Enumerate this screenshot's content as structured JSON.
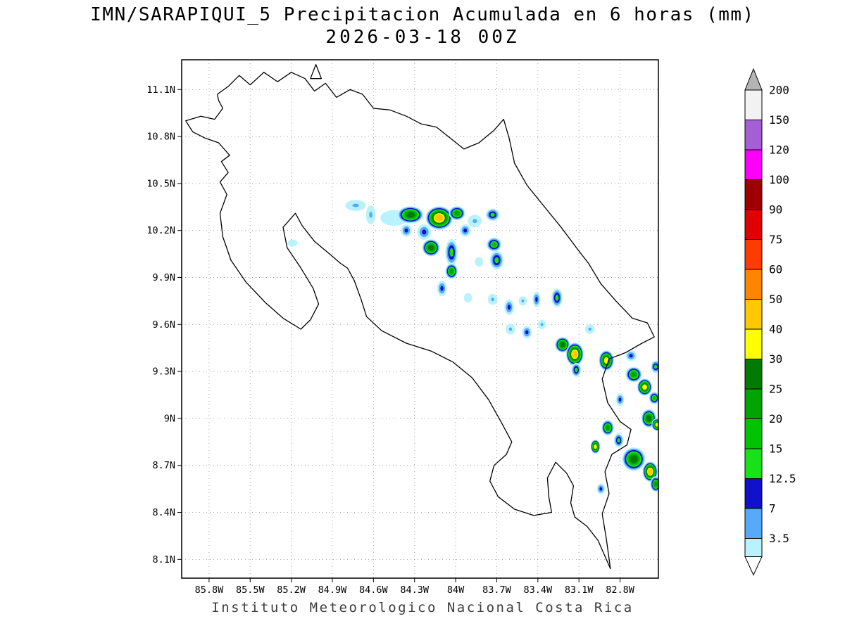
{
  "title": {
    "line1": "IMN/SARAPIQUI_5 Precipitacion Acumulada en 6 horas (mm)",
    "line2": "2026-03-18 00Z"
  },
  "footer": {
    "caption": "Instituto Meteorologico Nacional Costa Rica"
  },
  "chart_data": {
    "type": "heatmap",
    "title": "IMN/SARAPIQUI_5 Precipitacion Acumulada en 6 horas (mm)",
    "subtitle": "2026-03-18 00Z",
    "units": "mm",
    "region": "Costa Rica",
    "grid": true,
    "extent": {
      "lon_min": -86.0,
      "lon_max": -82.52,
      "lat_min": 7.98,
      "lat_max": 11.29
    },
    "lon_ticks": [
      {
        "v": -85.8,
        "label": "85.8W"
      },
      {
        "v": -85.5,
        "label": "85.5W"
      },
      {
        "v": -85.2,
        "label": "85.2W"
      },
      {
        "v": -84.9,
        "label": "84.9W"
      },
      {
        "v": -84.6,
        "label": "84.6W"
      },
      {
        "v": -84.3,
        "label": "84.3W"
      },
      {
        "v": -84.0,
        "label": "84W"
      },
      {
        "v": -83.7,
        "label": "83.7W"
      },
      {
        "v": -83.4,
        "label": "83.4W"
      },
      {
        "v": -83.1,
        "label": "83.1W"
      },
      {
        "v": -82.8,
        "label": "82.8W"
      }
    ],
    "lat_ticks": [
      {
        "v": 11.1,
        "label": "11.1N"
      },
      {
        "v": 10.8,
        "label": "10.8N"
      },
      {
        "v": 10.5,
        "label": "10.5N"
      },
      {
        "v": 10.2,
        "label": "10.2N"
      },
      {
        "v": 9.9,
        "label": "9.9N"
      },
      {
        "v": 9.6,
        "label": "9.6N"
      },
      {
        "v": 9.3,
        "label": "9.3N"
      },
      {
        "v": 9.0,
        "label": "9N"
      },
      {
        "v": 8.7,
        "label": "8.7N"
      },
      {
        "v": 8.4,
        "label": "8.4N"
      },
      {
        "v": 8.1,
        "label": "8.1N"
      }
    ],
    "colorbar": {
      "boundary_labels_top_to_bottom": [
        "200",
        "150",
        "120",
        "100",
        "90",
        "75",
        "60",
        "50",
        "40",
        "30",
        "25",
        "20",
        "15",
        "12.5",
        "7",
        "3.5"
      ],
      "segment_colors_top_to_bottom": [
        "#f2f2f2",
        "#a55fd5",
        "#fa00fa",
        "#9c0000",
        "#e00000",
        "#ff3c00",
        "#ff8400",
        "#ffc800",
        "#ffff00",
        "#007a00",
        "#00a300",
        "#00c300",
        "#17e117",
        "#1010cd",
        "#55aafa",
        "#b8f2fc"
      ],
      "levels_mm_ascending": [
        3.5,
        7,
        12.5,
        15,
        20,
        25,
        30,
        40,
        50,
        60,
        75,
        90,
        100,
        120,
        150,
        200
      ],
      "top_arrow_color": "#b4b4b4",
      "bottom_arrow_color": "#ffffff"
    },
    "coastline": [
      [
        -85.74,
        11.07
      ],
      [
        -85.66,
        11.12
      ],
      [
        -85.58,
        11.19
      ],
      [
        -85.5,
        11.13
      ],
      [
        -85.4,
        11.21
      ],
      [
        -85.3,
        11.15
      ],
      [
        -85.2,
        11.21
      ],
      [
        -85.1,
        11.17
      ],
      [
        -85.03,
        11.09
      ],
      [
        -84.95,
        11.14
      ],
      [
        -84.87,
        11.05
      ],
      [
        -84.77,
        11.1
      ],
      [
        -84.68,
        11.07
      ],
      [
        -84.6,
        10.98
      ],
      [
        -84.48,
        10.97
      ],
      [
        -84.36,
        10.93
      ],
      [
        -84.25,
        10.88
      ],
      [
        -84.14,
        10.86
      ],
      [
        -84.04,
        10.79
      ],
      [
        -83.94,
        10.72
      ],
      [
        -83.83,
        10.76
      ],
      [
        -83.72,
        10.84
      ],
      [
        -83.65,
        10.91
      ],
      [
        -83.61,
        10.79
      ],
      [
        -83.57,
        10.63
      ],
      [
        -83.48,
        10.49
      ],
      [
        -83.36,
        10.36
      ],
      [
        -83.23,
        10.22
      ],
      [
        -83.11,
        10.08
      ],
      [
        -83.03,
        9.99
      ],
      [
        -82.94,
        9.86
      ],
      [
        -82.83,
        9.75
      ],
      [
        -82.71,
        9.64
      ],
      [
        -82.6,
        9.61
      ],
      [
        -82.55,
        9.52
      ],
      [
        -82.64,
        9.48
      ],
      [
        -82.76,
        9.42
      ],
      [
        -82.88,
        9.38
      ],
      [
        -82.93,
        9.25
      ],
      [
        -82.89,
        9.1
      ],
      [
        -82.8,
        8.98
      ],
      [
        -82.72,
        8.93
      ],
      [
        -82.75,
        8.83
      ],
      [
        -82.86,
        8.77
      ],
      [
        -82.91,
        8.66
      ],
      [
        -82.88,
        8.52
      ],
      [
        -82.93,
        8.39
      ],
      [
        -82.9,
        8.23
      ],
      [
        -82.87,
        8.04
      ],
      [
        -82.96,
        8.22
      ],
      [
        -83.04,
        8.31
      ],
      [
        -83.13,
        8.37
      ],
      [
        -83.16,
        8.46
      ],
      [
        -83.14,
        8.57
      ],
      [
        -83.19,
        8.65
      ],
      [
        -83.27,
        8.72
      ],
      [
        -83.33,
        8.62
      ],
      [
        -83.32,
        8.5
      ],
      [
        -83.3,
        8.4
      ],
      [
        -83.43,
        8.38
      ],
      [
        -83.57,
        8.42
      ],
      [
        -83.69,
        8.5
      ],
      [
        -83.75,
        8.6
      ],
      [
        -83.72,
        8.7
      ],
      [
        -83.63,
        8.77
      ],
      [
        -83.59,
        8.85
      ],
      [
        -83.67,
        8.98
      ],
      [
        -83.76,
        9.12
      ],
      [
        -83.88,
        9.26
      ],
      [
        -84.02,
        9.36
      ],
      [
        -84.18,
        9.43
      ],
      [
        -84.36,
        9.48
      ],
      [
        -84.54,
        9.56
      ],
      [
        -84.65,
        9.65
      ],
      [
        -84.69,
        9.76
      ],
      [
        -84.74,
        9.88
      ],
      [
        -84.79,
        9.96
      ],
      [
        -84.84,
        9.99
      ],
      [
        -84.92,
        10.05
      ],
      [
        -85.03,
        10.13
      ],
      [
        -85.12,
        10.23
      ],
      [
        -85.17,
        10.31
      ],
      [
        -85.26,
        10.22
      ],
      [
        -85.23,
        10.09
      ],
      [
        -85.13,
        9.96
      ],
      [
        -85.04,
        9.83
      ],
      [
        -85.0,
        9.73
      ],
      [
        -85.06,
        9.63
      ],
      [
        -85.13,
        9.57
      ],
      [
        -85.26,
        9.64
      ],
      [
        -85.39,
        9.74
      ],
      [
        -85.53,
        9.87
      ],
      [
        -85.64,
        10.01
      ],
      [
        -85.7,
        10.16
      ],
      [
        -85.72,
        10.31
      ],
      [
        -85.67,
        10.43
      ],
      [
        -85.72,
        10.51
      ],
      [
        -85.66,
        10.57
      ],
      [
        -85.71,
        10.64
      ],
      [
        -85.65,
        10.68
      ],
      [
        -85.73,
        10.76
      ],
      [
        -85.83,
        10.79
      ],
      [
        -85.92,
        10.83
      ],
      [
        -85.97,
        10.9
      ],
      [
        -85.86,
        10.93
      ],
      [
        -85.76,
        10.91
      ],
      [
        -85.7,
        10.98
      ],
      [
        -85.73,
        11.03
      ],
      [
        -85.74,
        11.07
      ]
    ],
    "lake_island": [
      [
        -85.06,
        11.17
      ],
      [
        -84.98,
        11.17
      ],
      [
        -85.02,
        11.26
      ],
      [
        -85.06,
        11.17
      ]
    ],
    "cells": [
      {
        "lon": -84.73,
        "lat": 10.36,
        "rx": 0.075,
        "ry": 0.035,
        "mm": 7
      },
      {
        "lon": -84.62,
        "lat": 10.3,
        "rx": 0.035,
        "ry": 0.06,
        "mm": 7
      },
      {
        "lon": -84.45,
        "lat": 10.28,
        "rx": 0.1,
        "ry": 0.05,
        "mm": 3.5
      },
      {
        "lon": -84.33,
        "lat": 10.3,
        "rx": 0.095,
        "ry": 0.055,
        "mm": 30
      },
      {
        "lon": -84.12,
        "lat": 10.28,
        "rx": 0.1,
        "ry": 0.075,
        "mm": 50
      },
      {
        "lon": -83.99,
        "lat": 10.31,
        "rx": 0.06,
        "ry": 0.045,
        "mm": 25
      },
      {
        "lon": -84.23,
        "lat": 10.19,
        "rx": 0.05,
        "ry": 0.05,
        "mm": 12.5
      },
      {
        "lon": -84.36,
        "lat": 10.2,
        "rx": 0.04,
        "ry": 0.04,
        "mm": 12.5
      },
      {
        "lon": -83.93,
        "lat": 10.2,
        "rx": 0.04,
        "ry": 0.04,
        "mm": 12.5
      },
      {
        "lon": -83.86,
        "lat": 10.26,
        "rx": 0.05,
        "ry": 0.04,
        "mm": 7
      },
      {
        "lon": -83.73,
        "lat": 10.3,
        "rx": 0.05,
        "ry": 0.04,
        "mm": 15
      },
      {
        "lon": -84.18,
        "lat": 10.09,
        "rx": 0.065,
        "ry": 0.055,
        "mm": 30
      },
      {
        "lon": -84.03,
        "lat": 10.06,
        "rx": 0.045,
        "ry": 0.085,
        "mm": 15
      },
      {
        "lon": -84.03,
        "lat": 9.94,
        "rx": 0.045,
        "ry": 0.05,
        "mm": 25
      },
      {
        "lon": -83.72,
        "lat": 10.11,
        "rx": 0.055,
        "ry": 0.045,
        "mm": 20
      },
      {
        "lon": -83.7,
        "lat": 10.01,
        "rx": 0.05,
        "ry": 0.06,
        "mm": 15
      },
      {
        "lon": -83.83,
        "lat": 10.0,
        "rx": 0.03,
        "ry": 0.03,
        "mm": 3.5
      },
      {
        "lon": -84.1,
        "lat": 9.83,
        "rx": 0.035,
        "ry": 0.05,
        "mm": 12.5
      },
      {
        "lon": -83.91,
        "lat": 9.77,
        "rx": 0.03,
        "ry": 0.03,
        "mm": 3.5
      },
      {
        "lon": -83.73,
        "lat": 9.76,
        "rx": 0.035,
        "ry": 0.035,
        "mm": 7
      },
      {
        "lon": -83.61,
        "lat": 9.71,
        "rx": 0.035,
        "ry": 0.05,
        "mm": 12.5
      },
      {
        "lon": -83.51,
        "lat": 9.75,
        "rx": 0.03,
        "ry": 0.03,
        "mm": 7
      },
      {
        "lon": -83.41,
        "lat": 9.76,
        "rx": 0.028,
        "ry": 0.05,
        "mm": 12.5
      },
      {
        "lon": -83.26,
        "lat": 9.77,
        "rx": 0.04,
        "ry": 0.06,
        "mm": 15
      },
      {
        "lon": -83.6,
        "lat": 9.57,
        "rx": 0.035,
        "ry": 0.035,
        "mm": 7
      },
      {
        "lon": -83.48,
        "lat": 9.55,
        "rx": 0.035,
        "ry": 0.04,
        "mm": 12.5
      },
      {
        "lon": -83.37,
        "lat": 9.6,
        "rx": 0.03,
        "ry": 0.03,
        "mm": 7
      },
      {
        "lon": -83.02,
        "lat": 9.57,
        "rx": 0.035,
        "ry": 0.03,
        "mm": 7
      },
      {
        "lon": -83.22,
        "lat": 9.47,
        "rx": 0.055,
        "ry": 0.05,
        "mm": 30
      },
      {
        "lon": -83.13,
        "lat": 9.41,
        "rx": 0.065,
        "ry": 0.075,
        "mm": 50
      },
      {
        "lon": -83.12,
        "lat": 9.31,
        "rx": 0.035,
        "ry": 0.045,
        "mm": 15
      },
      {
        "lon": -82.9,
        "lat": 9.37,
        "rx": 0.055,
        "ry": 0.065,
        "mm": 40
      },
      {
        "lon": -82.72,
        "lat": 9.4,
        "rx": 0.04,
        "ry": 0.035,
        "mm": 12.5
      },
      {
        "lon": -82.7,
        "lat": 9.28,
        "rx": 0.06,
        "ry": 0.05,
        "mm": 25
      },
      {
        "lon": -82.62,
        "lat": 9.2,
        "rx": 0.055,
        "ry": 0.055,
        "mm": 40
      },
      {
        "lon": -82.54,
        "lat": 9.33,
        "rx": 0.035,
        "ry": 0.04,
        "mm": 15
      },
      {
        "lon": -82.55,
        "lat": 9.13,
        "rx": 0.04,
        "ry": 0.04,
        "mm": 20
      },
      {
        "lon": -82.8,
        "lat": 9.12,
        "rx": 0.03,
        "ry": 0.04,
        "mm": 12.5
      },
      {
        "lon": -82.59,
        "lat": 9.0,
        "rx": 0.055,
        "ry": 0.06,
        "mm": 30
      },
      {
        "lon": -82.53,
        "lat": 8.96,
        "rx": 0.04,
        "ry": 0.04,
        "mm": 40
      },
      {
        "lon": -82.89,
        "lat": 8.94,
        "rx": 0.045,
        "ry": 0.05,
        "mm": 25
      },
      {
        "lon": -82.98,
        "lat": 8.82,
        "rx": 0.035,
        "ry": 0.045,
        "mm": 40
      },
      {
        "lon": -82.81,
        "lat": 8.86,
        "rx": 0.035,
        "ry": 0.045,
        "mm": 15
      },
      {
        "lon": -82.7,
        "lat": 8.74,
        "rx": 0.085,
        "ry": 0.075,
        "mm": 30
      },
      {
        "lon": -82.58,
        "lat": 8.66,
        "rx": 0.055,
        "ry": 0.065,
        "mm": 50
      },
      {
        "lon": -82.54,
        "lat": 8.58,
        "rx": 0.04,
        "ry": 0.05,
        "mm": 25
      },
      {
        "lon": -82.94,
        "lat": 8.55,
        "rx": 0.03,
        "ry": 0.035,
        "mm": 12.5
      },
      {
        "lon": -85.19,
        "lat": 10.12,
        "rx": 0.035,
        "ry": 0.022,
        "mm": 3.5
      }
    ]
  }
}
